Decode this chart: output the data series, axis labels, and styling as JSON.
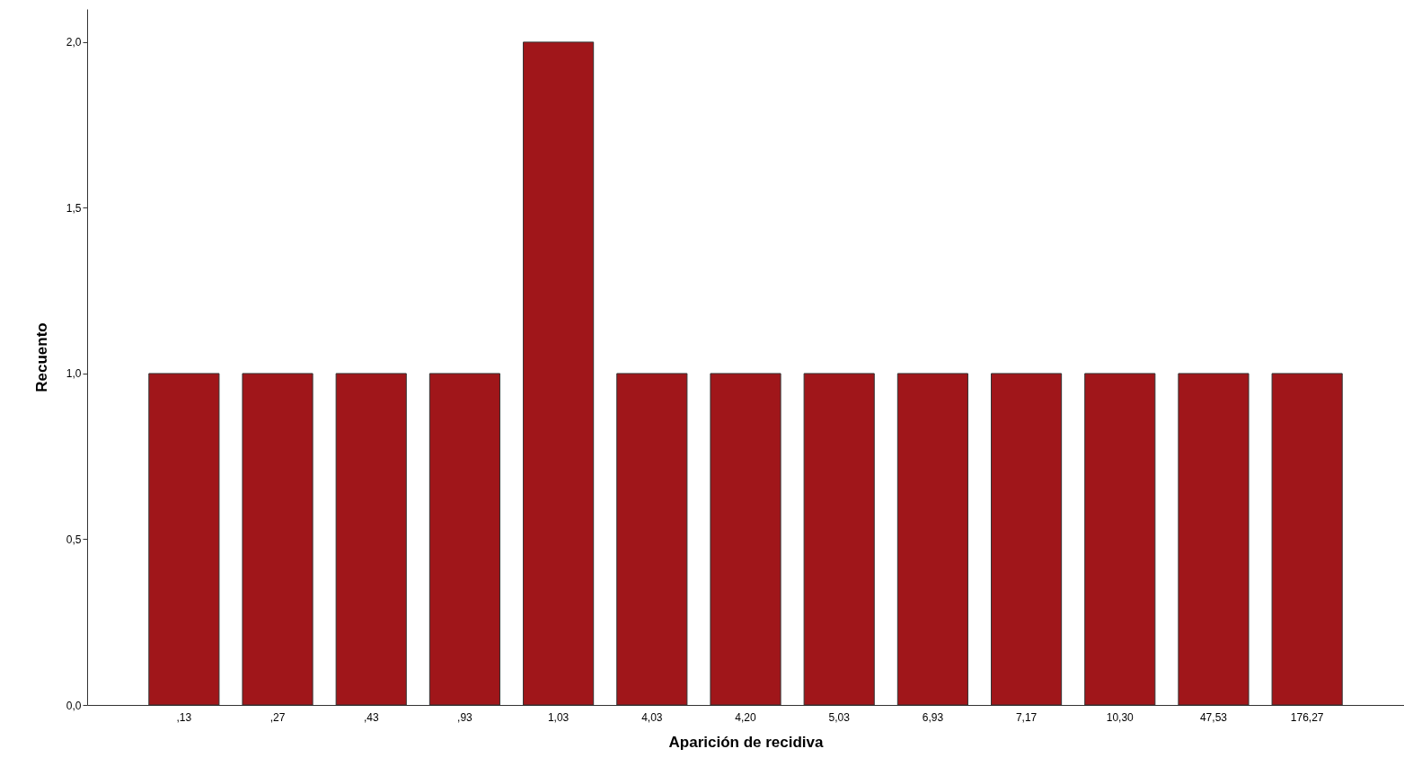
{
  "chart_data": {
    "type": "bar",
    "xlabel": "Aparición de recidiva",
    "ylabel": "Recuento",
    "categories": [
      ",13",
      ",27",
      ",43",
      ",93",
      "1,03",
      "4,03",
      "4,20",
      "5,03",
      "6,93",
      "7,17",
      "10,30",
      "47,53",
      "176,27"
    ],
    "values": [
      1,
      1,
      1,
      1,
      2,
      1,
      1,
      1,
      1,
      1,
      1,
      1,
      1
    ],
    "color": "#a0161a",
    "ylim": [
      0,
      2.1
    ],
    "yticks": [
      {
        "value": 0,
        "label": "0,0"
      },
      {
        "value": 0.5,
        "label": "0,5"
      },
      {
        "value": 1,
        "label": "1,0"
      },
      {
        "value": 1.5,
        "label": "1,5"
      },
      {
        "value": 2,
        "label": "2,0"
      }
    ],
    "grid": false
  }
}
